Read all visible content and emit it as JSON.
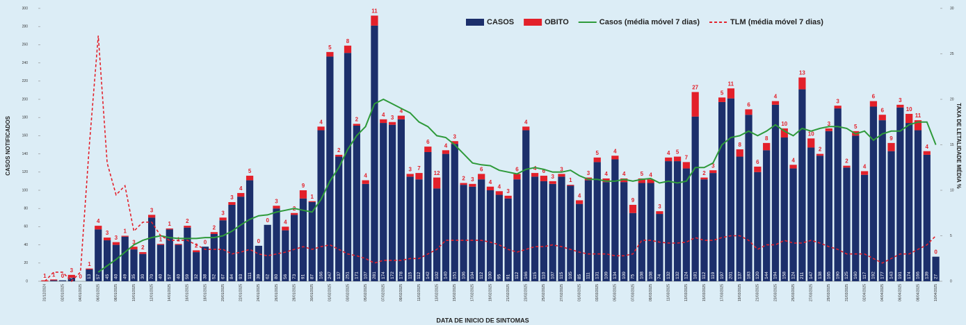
{
  "chart_data": {
    "type": "bar",
    "categories": [
      "31/12/2024",
      null,
      "02/01/2025",
      null,
      "04/01/2025",
      null,
      "06/01/2025",
      null,
      "08/01/2025",
      null,
      "10/01/2025",
      null,
      "12/01/2025",
      null,
      "14/01/2025",
      null,
      "16/01/2025",
      null,
      "18/01/2025",
      null,
      "20/01/2025",
      null,
      "22/01/2025",
      null,
      "24/01/2025",
      null,
      "26/01/2025",
      null,
      "28/01/2025",
      null,
      "30/01/2025",
      null,
      "01/02/2025",
      null,
      "03/02/2025",
      null,
      "05/02/2025",
      null,
      "07/02/2025",
      null,
      "09/02/2025",
      null,
      "11/02/2025",
      null,
      "13/02/2025",
      null,
      "15/02/2025",
      null,
      "17/02/2025",
      null,
      "19/02/2025",
      null,
      "21/02/2025",
      null,
      "23/02/2025",
      null,
      "25/02/2025",
      null,
      "27/02/2025",
      null,
      "01/03/2025",
      null,
      "03/03/2025",
      null,
      "05/03/2025",
      null,
      "07/03/2025",
      null,
      "09/03/2025",
      null,
      "11/03/2025",
      null,
      "13/03/2025",
      null,
      "15/03/2025",
      null,
      "17/03/2025",
      null,
      "19/03/2025",
      null,
      "21/03/2025",
      null,
      "23/03/2025",
      null,
      "25/03/2025",
      null,
      "27/03/2025",
      null,
      "29/03/2025",
      null,
      "31/03/2025",
      null,
      "02/04/2025",
      null,
      "04/04/2025",
      null,
      "06/04/2025",
      null,
      "08/04/2025",
      null,
      "10/04/2025"
    ],
    "series": [
      {
        "name": "CASOS",
        "type": "bar",
        "color": "#1c2f6b",
        "values": [
          0,
          1,
          1,
          4,
          0,
          13,
          57,
          45,
          40,
          49,
          35,
          30,
          70,
          40,
          57,
          40,
          59,
          32,
          38,
          52,
          67,
          84,
          93,
          111,
          39,
          62,
          80,
          56,
          73,
          91,
          87,
          166,
          247,
          137,
          251,
          171,
          107,
          281,
          174,
          172,
          178,
          115,
          112,
          142,
          102,
          140,
          151,
          106,
          104,
          112,
          100,
          95,
          91,
          112,
          166,
          115,
          110,
          107,
          115,
          105,
          85,
          111,
          131,
          109,
          134,
          109,
          75,
          108,
          108,
          74,
          132,
          132,
          124,
          181,
          112,
          119,
          197,
          201,
          137,
          183,
          120,
          144,
          194,
          158,
          124,
          211,
          147,
          138,
          165,
          190,
          125,
          160,
          117,
          192,
          177,
          143,
          191,
          174,
          166,
          139,
          27
        ]
      },
      {
        "name": "OBITO",
        "type": "bar",
        "color": "#e3202a",
        "values": [
          1,
          1,
          0,
          3,
          0,
          1,
          4,
          3,
          3,
          1,
          3,
          2,
          3,
          1,
          1,
          1,
          2,
          2,
          0,
          2,
          3,
          3,
          4,
          5,
          0,
          0,
          3,
          4,
          2,
          9,
          1,
          4,
          5,
          2,
          8,
          2,
          4,
          11,
          4,
          3,
          4,
          3,
          7,
          6,
          12,
          4,
          3,
          2,
          3,
          6,
          4,
          4,
          3,
          6,
          4,
          4,
          6,
          3,
          3,
          1,
          4,
          3,
          5,
          4,
          4,
          4,
          9,
          5,
          4,
          3,
          4,
          5,
          7,
          27,
          2,
          3,
          5,
          11,
          8,
          6,
          6,
          8,
          4,
          10,
          4,
          13,
          10,
          2,
          3,
          3,
          2,
          5,
          4,
          6,
          6,
          9,
          3,
          10,
          11,
          4,
          0
        ]
      },
      {
        "name": "Casos (média móvel 7 dias)",
        "type": "line",
        "color": "#2e9a3a",
        "values": [
          null,
          null,
          null,
          null,
          null,
          null,
          10,
          17,
          24,
          32,
          40,
          45,
          48,
          50,
          48,
          47,
          47,
          47,
          48,
          48,
          50,
          55,
          62,
          68,
          72,
          73,
          76,
          78,
          80,
          78,
          76,
          90,
          110,
          125,
          145,
          160,
          170,
          195,
          200,
          195,
          190,
          185,
          175,
          170,
          160,
          158,
          150,
          140,
          130,
          128,
          127,
          122,
          120,
          118,
          123,
          125,
          123,
          120,
          120,
          122,
          116,
          112,
          112,
          110,
          110,
          112,
          110,
          112,
          113,
          108,
          110,
          108,
          110,
          125,
          125,
          130,
          150,
          158,
          160,
          165,
          160,
          165,
          172,
          165,
          160,
          168,
          165,
          168,
          170,
          170,
          168,
          162,
          165,
          155,
          162,
          165,
          165,
          172,
          175,
          175,
          150
        ]
      },
      {
        "name": "TLM (média móvel 7 dias)",
        "type": "line",
        "axis": "y2",
        "dashed": true,
        "color": "#e3202a",
        "values": [
          0,
          1,
          1,
          0,
          1,
          15,
          27,
          13,
          9.5,
          10.5,
          5.5,
          6.5,
          6.5,
          5,
          4.5,
          4.5,
          4.5,
          4,
          3.5,
          3.5,
          3.5,
          3,
          3.2,
          3.5,
          3,
          2.8,
          3,
          3.2,
          3.5,
          3.8,
          3.5,
          3.8,
          4,
          3.5,
          3,
          2.8,
          2.5,
          2,
          2.3,
          2.3,
          2.3,
          2.5,
          2.5,
          3,
          3.5,
          4.5,
          4.5,
          4.5,
          4.5,
          4.5,
          4.3,
          4,
          3.5,
          3.2,
          3.5,
          3.8,
          3.8,
          4,
          3.8,
          3.5,
          3.2,
          3,
          3,
          3,
          2.8,
          2.8,
          3,
          4.5,
          4.5,
          4.3,
          4.2,
          4.2,
          4.3,
          4.8,
          4.5,
          4.5,
          4.8,
          5,
          5,
          4.5,
          3.5,
          4,
          4,
          4.5,
          4.2,
          4.2,
          4.5,
          4.2,
          3.8,
          3.5,
          3,
          3,
          3,
          2.5,
          2,
          2.5,
          3,
          3,
          3.5,
          4,
          5
        ]
      }
    ],
    "stacked": true,
    "xlabel": "DATA DE INICIO DE SINTOMAS",
    "ylabel": "CASOS NOTIFICADOS",
    "y2label": "TAXA DE LETALIDADE MÉDIA %",
    "ylim": [
      0,
      300
    ],
    "yticks": [
      0,
      20,
      40,
      60,
      80,
      100,
      120,
      140,
      160,
      180,
      200,
      220,
      240,
      260,
      280,
      300
    ],
    "y2lim": [
      0,
      30
    ],
    "y2ticks": [
      0,
      5,
      10,
      15,
      20,
      25,
      30
    ],
    "legend": "top"
  }
}
